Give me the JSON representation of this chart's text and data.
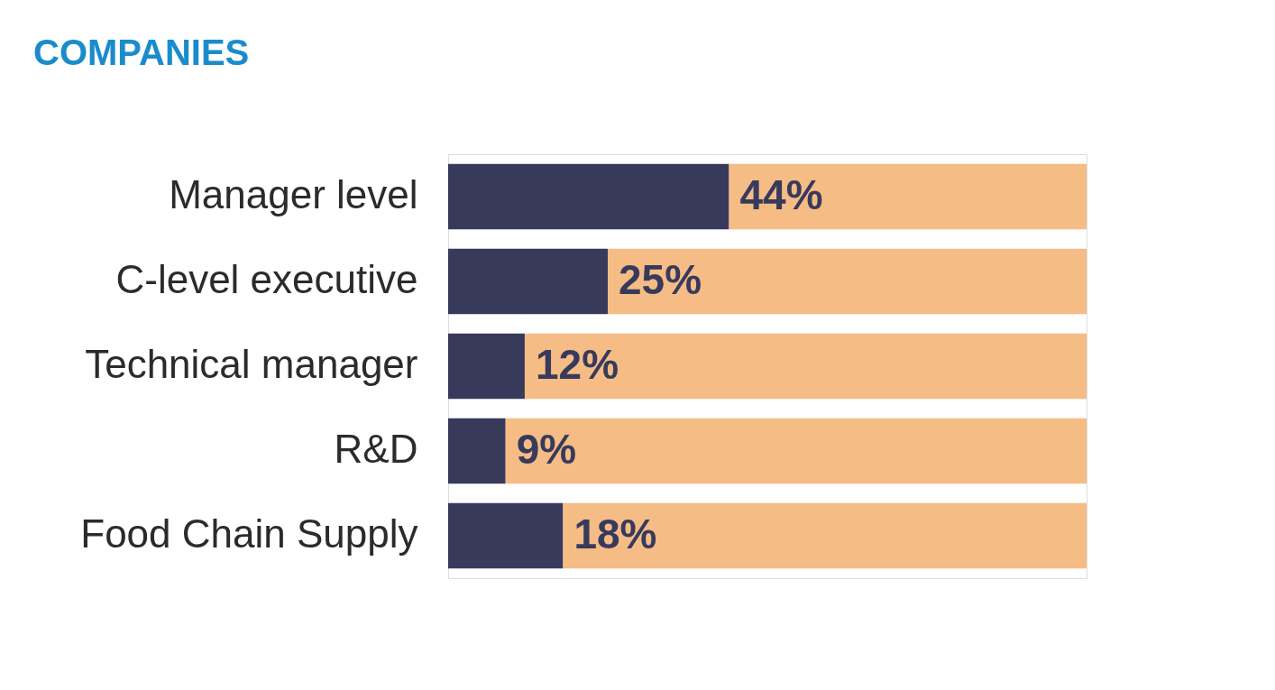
{
  "chart_data": {
    "type": "bar",
    "orientation": "horizontal",
    "stacked": true,
    "title": "COMPANIES",
    "categories": [
      "Manager level",
      "C-level executive",
      "Technical manager",
      "R&D",
      "Food Chain Supply"
    ],
    "tick_labels": "y",
    "series": [
      {
        "color": "#383a5c",
        "values": [
          44,
          25,
          12,
          9,
          18
        ],
        "value_labels": [
          "44%",
          "25%",
          "12%",
          "9%",
          "18%"
        ]
      },
      {
        "color": "#f5bc85",
        "values": [
          56,
          75,
          88,
          91,
          82
        ]
      }
    ]
  }
}
